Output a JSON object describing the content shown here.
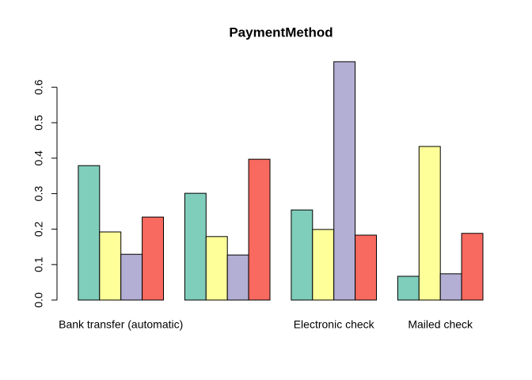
{
  "chart_data": {
    "type": "bar",
    "title": "PaymentMethod",
    "categories": [
      "Bank transfer (automatic)",
      null,
      "Electronic check",
      "Mailed check"
    ],
    "series": [
      {
        "color": "#7fcdbb",
        "values": [
          0.379,
          0.301,
          0.254,
          0.067
        ]
      },
      {
        "color": "#ffff99",
        "values": [
          0.192,
          0.179,
          0.199,
          0.433
        ]
      },
      {
        "color": "#b3aed4",
        "values": [
          0.129,
          0.127,
          0.672,
          0.074
        ]
      },
      {
        "color": "#f8695f",
        "values": [
          0.234,
          0.397,
          0.183,
          0.188
        ]
      }
    ],
    "ylim": [
      0,
      0.7
    ],
    "yticks": [
      {
        "value": 0,
        "label": "0.0"
      },
      0.1,
      0.2,
      0.3,
      0.4,
      0.5,
      0.6
    ],
    "grid": false
  }
}
